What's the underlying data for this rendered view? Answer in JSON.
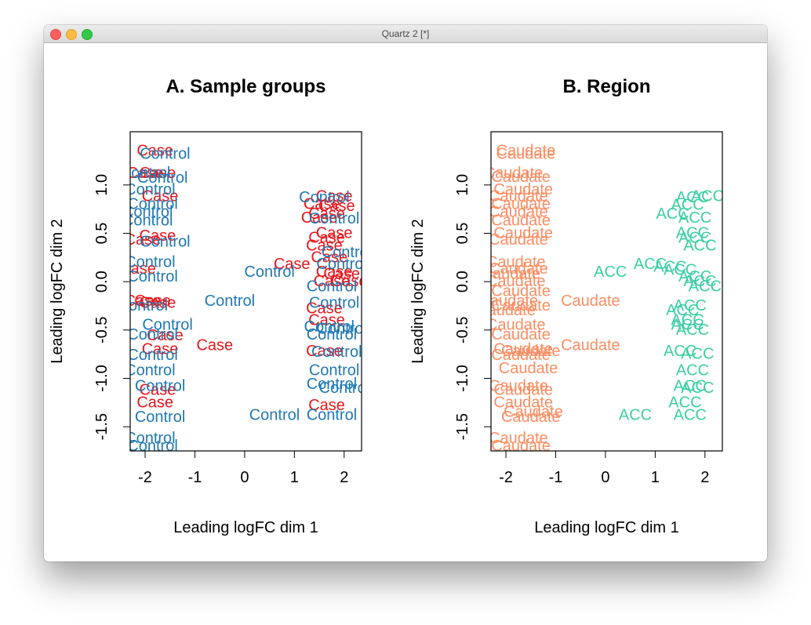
{
  "window": {
    "title": "Quartz 2 [*]"
  },
  "colors": {
    "case": "#e8161c",
    "control": "#1f78b4",
    "caudate": "#fc8d62",
    "acc": "#3ccfa4"
  },
  "chart_data": [
    {
      "type": "scatter",
      "title": "A. Sample groups",
      "xlabel": "Leading logFC dim 1",
      "ylabel": "Leading logFC dim 2",
      "xlim": [
        -2.3,
        2.35
      ],
      "ylim": [
        -1.75,
        1.55
      ],
      "xticks": [
        -2,
        -1,
        0,
        1,
        2
      ],
      "yticks": [
        -1.5,
        -1.0,
        -0.5,
        0.0,
        0.5,
        1.0
      ],
      "ytick_labels": [
        "-1.5",
        "-1.0",
        "-0.5",
        "0.0",
        "0.5",
        "1.0"
      ],
      "marker": "text labels",
      "series": [
        {
          "name": "Case",
          "color_key": "case",
          "points": [
            [
              -1.8,
              1.35
            ],
            [
              -2.0,
              1.12
            ],
            [
              -1.75,
              1.12
            ],
            [
              -1.7,
              0.88
            ],
            [
              -1.75,
              0.47
            ],
            [
              -2.05,
              0.43
            ],
            [
              -2.15,
              0.13
            ],
            [
              -2.05,
              -0.2
            ],
            [
              -1.85,
              -0.2
            ],
            [
              -1.75,
              -0.22
            ],
            [
              -1.6,
              -0.56
            ],
            [
              -1.7,
              -0.7
            ],
            [
              -1.75,
              -1.12
            ],
            [
              -1.8,
              -1.25
            ],
            [
              -0.6,
              -0.66
            ],
            [
              0.95,
              0.18
            ],
            [
              1.8,
              0.88
            ],
            [
              1.55,
              0.8
            ],
            [
              1.85,
              0.78
            ],
            [
              1.65,
              0.7
            ],
            [
              1.5,
              0.66
            ],
            [
              1.8,
              0.5
            ],
            [
              1.65,
              0.45
            ],
            [
              1.6,
              0.37
            ],
            [
              1.7,
              0.25
            ],
            [
              1.8,
              0.1
            ],
            [
              1.75,
              0.0
            ],
            [
              1.95,
              0.08
            ],
            [
              2.1,
              0.0
            ],
            [
              1.6,
              -0.28
            ],
            [
              1.65,
              -0.4
            ],
            [
              1.6,
              -0.72
            ],
            [
              1.65,
              -1.28
            ]
          ]
        },
        {
          "name": "Control",
          "color_key": "control",
          "points": [
            [
              -1.6,
              1.32
            ],
            [
              -2.0,
              1.12
            ],
            [
              -1.65,
              1.07
            ],
            [
              -1.9,
              0.95
            ],
            [
              -1.85,
              0.8
            ],
            [
              -1.95,
              0.72
            ],
            [
              -1.95,
              0.63
            ],
            [
              -1.6,
              0.41
            ],
            [
              -1.9,
              0.2
            ],
            [
              -1.85,
              0.05
            ],
            [
              -2.05,
              -0.25
            ],
            [
              -1.55,
              -0.45
            ],
            [
              -1.85,
              -0.55
            ],
            [
              -1.85,
              -0.76
            ],
            [
              -1.9,
              -0.92
            ],
            [
              -1.7,
              -1.08
            ],
            [
              -1.7,
              -1.4
            ],
            [
              -1.9,
              -1.62
            ],
            [
              -1.85,
              -1.7
            ],
            [
              -0.3,
              -0.2
            ],
            [
              0.5,
              0.1
            ],
            [
              0.6,
              -1.38
            ],
            [
              1.6,
              0.87
            ],
            [
              1.8,
              0.65
            ],
            [
              2.05,
              0.3
            ],
            [
              1.95,
              0.18
            ],
            [
              1.75,
              -0.05
            ],
            [
              1.8,
              -0.22
            ],
            [
              1.7,
              -0.47
            ],
            [
              1.95,
              -0.49
            ],
            [
              1.75,
              -0.55
            ],
            [
              1.85,
              -0.73
            ],
            [
              1.8,
              -0.92
            ],
            [
              1.75,
              -1.06
            ],
            [
              2.0,
              -1.1
            ],
            [
              1.75,
              -1.38
            ]
          ]
        }
      ]
    },
    {
      "type": "scatter",
      "title": "B. Region",
      "xlabel": "Leading logFC dim 1",
      "ylabel": "Leading logFC dim 2",
      "xlim": [
        -2.3,
        2.35
      ],
      "ylim": [
        -1.75,
        1.55
      ],
      "xticks": [
        -2,
        -1,
        0,
        1,
        2
      ],
      "yticks": [
        -1.5,
        -1.0,
        -0.5,
        0.0,
        0.5,
        1.0
      ],
      "ytick_labels": [
        "-1.5",
        "-1.0",
        "-0.5",
        "0.0",
        "0.5",
        "1.0"
      ],
      "marker": "text labels",
      "series": [
        {
          "name": "Caudate",
          "color_key": "caudate",
          "points": [
            [
              -1.6,
              1.35
            ],
            [
              -1.6,
              1.32
            ],
            [
              -1.85,
              1.12
            ],
            [
              -1.7,
              1.08
            ],
            [
              -1.65,
              0.95
            ],
            [
              -1.75,
              0.88
            ],
            [
              -1.7,
              0.8
            ],
            [
              -1.75,
              0.72
            ],
            [
              -1.7,
              0.63
            ],
            [
              -1.65,
              0.5
            ],
            [
              -1.75,
              0.43
            ],
            [
              -1.8,
              0.2
            ],
            [
              -1.75,
              0.13
            ],
            [
              -1.9,
              0.08
            ],
            [
              -1.8,
              0.0
            ],
            [
              -1.7,
              -0.1
            ],
            [
              -1.95,
              -0.2
            ],
            [
              -1.7,
              -0.25
            ],
            [
              -2.0,
              -0.3
            ],
            [
              -0.3,
              -0.2
            ],
            [
              -1.8,
              -0.45
            ],
            [
              -1.7,
              -0.55
            ],
            [
              -1.65,
              -0.7
            ],
            [
              -1.5,
              -0.72
            ],
            [
              -1.7,
              -0.76
            ],
            [
              -1.55,
              -0.9
            ],
            [
              -1.75,
              -1.08
            ],
            [
              -1.65,
              -1.12
            ],
            [
              -1.65,
              -1.25
            ],
            [
              -1.45,
              -1.35
            ],
            [
              -1.5,
              -1.4
            ],
            [
              -1.75,
              -1.62
            ],
            [
              -1.7,
              -1.7
            ],
            [
              -0.3,
              -0.66
            ]
          ]
        },
        {
          "name": "ACC",
          "color_key": "acc",
          "points": [
            [
              1.75,
              0.87
            ],
            [
              2.05,
              0.88
            ],
            [
              1.65,
              0.79
            ],
            [
              1.35,
              0.7
            ],
            [
              1.8,
              0.66
            ],
            [
              1.75,
              0.5
            ],
            [
              1.8,
              0.45
            ],
            [
              1.9,
              0.37
            ],
            [
              0.9,
              0.18
            ],
            [
              1.3,
              0.15
            ],
            [
              1.5,
              0.12
            ],
            [
              1.8,
              0.05
            ],
            [
              1.9,
              0.0
            ],
            [
              2.0,
              -0.05
            ],
            [
              1.7,
              -0.25
            ],
            [
              1.55,
              -0.3
            ],
            [
              1.65,
              -0.4
            ],
            [
              1.65,
              -0.45
            ],
            [
              1.75,
              -0.5
            ],
            [
              1.5,
              -0.72
            ],
            [
              1.85,
              -0.75
            ],
            [
              1.75,
              -0.92
            ],
            [
              1.7,
              -1.08
            ],
            [
              1.85,
              -1.1
            ],
            [
              1.6,
              -1.25
            ],
            [
              1.7,
              -1.38
            ],
            [
              0.6,
              -1.38
            ],
            [
              0.1,
              0.1
            ]
          ]
        }
      ]
    }
  ]
}
